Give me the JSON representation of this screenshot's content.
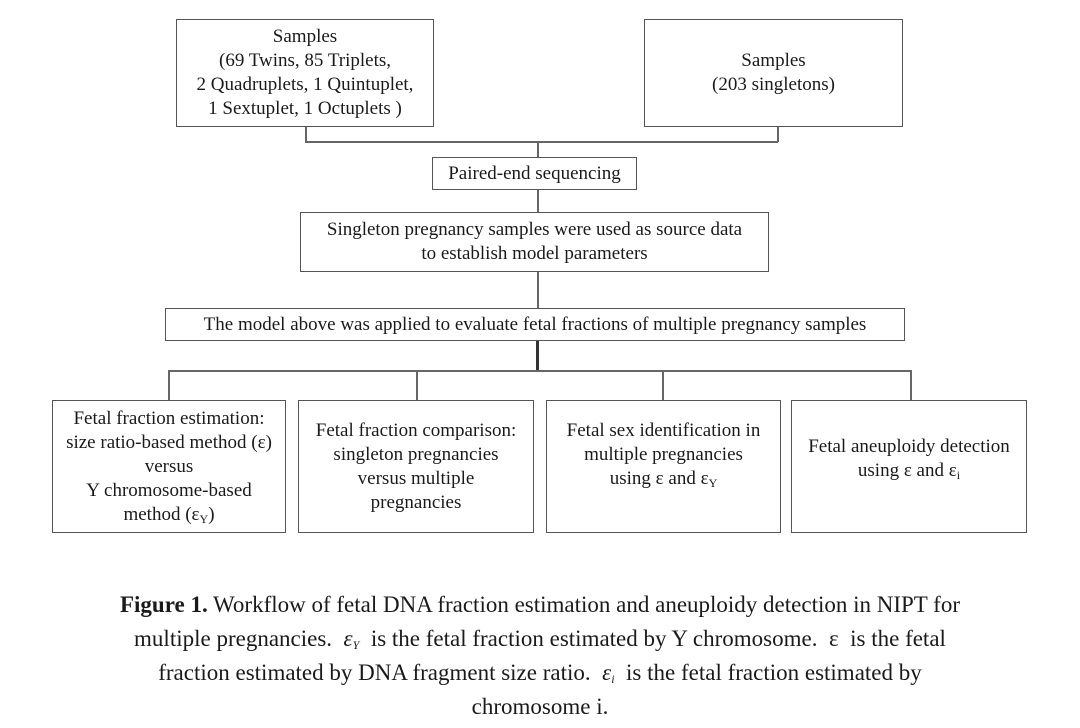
{
  "diagram": {
    "samples_multiple": {
      "lines": [
        "Samples",
        "(69 Twins, 85 Triplets,",
        "2 Quadruplets, 1 Quintuplet,",
        "1 Sextuplet, 1 Octuplets )"
      ]
    },
    "samples_singleton": {
      "lines": [
        "Samples",
        "(203 singletons)"
      ]
    },
    "sequencing": "Paired-end sequencing",
    "source_data": {
      "lines": [
        "Singleton pregnancy samples were used as source data",
        "to establish model parameters"
      ]
    },
    "model_applied": "The model above was applied to evaluate fetal fractions of multiple pregnancy samples",
    "outcomes": [
      {
        "lines": [
          "Fetal fraction estimation:",
          "size ratio-based method (ε)",
          "versus",
          "Y chromosome-based"
        ],
        "last_pre": "method (ε",
        "last_sub": "Y",
        "last_post": ")"
      },
      {
        "lines": [
          "Fetal fraction comparison:",
          "singleton pregnancies",
          "versus multiple",
          "pregnancies"
        ]
      },
      {
        "lines": [
          "Fetal sex identification in",
          "multiple pregnancies"
        ],
        "last_pre": "using ε and ε",
        "last_sub": "Y",
        "last_post": ""
      },
      {
        "lines": [
          "Fetal aneuploidy detection"
        ],
        "last_pre": "using ε and ε",
        "last_sub": "i",
        "last_post": ""
      }
    ]
  },
  "caption": {
    "label": "Figure 1.",
    "line1": " Workflow of fetal DNA fraction estimation and aneuploidy detection in NIPT for",
    "line2_a": "multiple pregnancies.  ",
    "eps": "ε",
    "sub_Y": "Y",
    "line2_b": "  is the fetal fraction estimated by Y chromosome.  ε  is the fetal",
    "line3_a": "fraction estimated by DNA fragment size ratio.  ",
    "sub_i": "i",
    "line3_b": "  is the fetal fraction estimated by",
    "line4": "chromosome i."
  }
}
